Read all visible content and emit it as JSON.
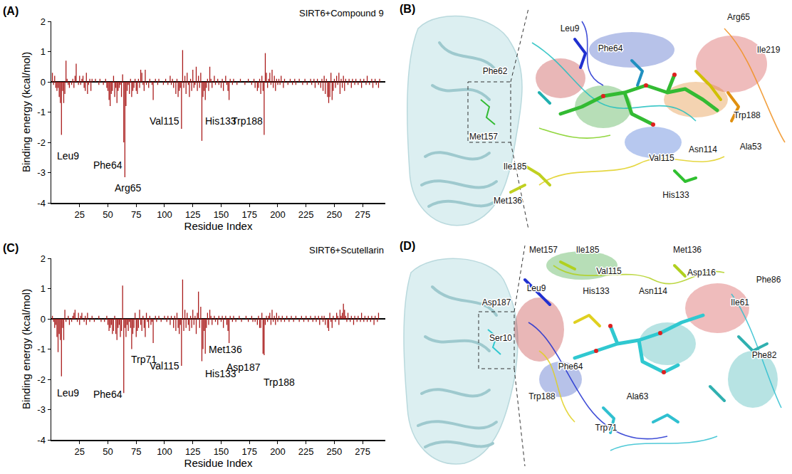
{
  "chart_data": [
    {
      "panel": "(A)",
      "type": "bar",
      "title": "SIRT6+Compound 9",
      "x_label": "Residue Index",
      "y_label": "Binding energy (kcal/mol)",
      "color": "#a81818",
      "grid": false,
      "xlim": [
        0,
        295
      ],
      "xticks": [
        25,
        50,
        75,
        100,
        125,
        150,
        175,
        200,
        225,
        250,
        275
      ],
      "ylim": [
        -4,
        2
      ],
      "yticks": [
        -4,
        -3,
        -2,
        -1,
        0,
        1,
        2
      ],
      "x": [
        1,
        2,
        3,
        4,
        5,
        6,
        7,
        8,
        9,
        10,
        11,
        12,
        13,
        14,
        15,
        16,
        17,
        18,
        19,
        20,
        21,
        22,
        23,
        24,
        25,
        26,
        27,
        28,
        29,
        30,
        31,
        32,
        33,
        34,
        35,
        36,
        37,
        38,
        39,
        40,
        41,
        42,
        43,
        44,
        45,
        46,
        47,
        48,
        49,
        50,
        51,
        52,
        53,
        54,
        55,
        56,
        57,
        58,
        59,
        60,
        61,
        62,
        63,
        64,
        65,
        66,
        67,
        68,
        69,
        70,
        71,
        72,
        73,
        74,
        75,
        76,
        77,
        78,
        79,
        80,
        81,
        82,
        83,
        84,
        85,
        86,
        87,
        88,
        89,
        90,
        91,
        92,
        93,
        94,
        95,
        96,
        97,
        98,
        99,
        100,
        101,
        102,
        103,
        104,
        105,
        106,
        107,
        108,
        109,
        110,
        111,
        112,
        113,
        114,
        115,
        116,
        117,
        118,
        119,
        120,
        121,
        122,
        123,
        124,
        125,
        126,
        127,
        128,
        129,
        130,
        131,
        132,
        133,
        134,
        135,
        136,
        137,
        138,
        139,
        140,
        141,
        142,
        143,
        144,
        145,
        146,
        147,
        148,
        149,
        150,
        151,
        152,
        153,
        154,
        155,
        156,
        157,
        158,
        159,
        160,
        161,
        162,
        163,
        164,
        165,
        166,
        167,
        168,
        169,
        170,
        171,
        172,
        173,
        174,
        175,
        176,
        177,
        178,
        179,
        180,
        181,
        182,
        183,
        184,
        185,
        186,
        187,
        188,
        189,
        190,
        191,
        192,
        193,
        194,
        195,
        196,
        197,
        198,
        199,
        200,
        201,
        202,
        203,
        204,
        205,
        206,
        207,
        208,
        209,
        210,
        211,
        212,
        213,
        214,
        215,
        216,
        217,
        218,
        219,
        220,
        221,
        222,
        223,
        224,
        225,
        226,
        227,
        228,
        229,
        230,
        231,
        232,
        233,
        234,
        235,
        236,
        237,
        238,
        239,
        240,
        241,
        242,
        243,
        244,
        245,
        246,
        247,
        248,
        249,
        250,
        251,
        252,
        253,
        254,
        255,
        256,
        257,
        258,
        259,
        260,
        261,
        262,
        263,
        264,
        265,
        266,
        267,
        268,
        269,
        270,
        271,
        272,
        273,
        274,
        275,
        276,
        277,
        278,
        279,
        280,
        281,
        282,
        283,
        284,
        285,
        286,
        287,
        288,
        289,
        290
      ],
      "values": [
        0.3,
        -0.1,
        0.2,
        -0.2,
        -0.3,
        -0.2,
        -0.5,
        -0.7,
        -1.75,
        -0.3,
        -0.7,
        -0.4,
        0.7,
        0.1,
        -0.1,
        -0.2,
        0.0,
        -0.1,
        0.1,
        -0.2,
        0.2,
        0.6,
        0.0,
        -0.1,
        0.2,
        -0.1,
        0.1,
        0.2,
        -0.2,
        -0.3,
        0.3,
        -0.4,
        -0.1,
        0.1,
        -0.3,
        0.1,
        0.0,
        0.0,
        0.1,
        0.0,
        0.0,
        -0.1,
        0.1,
        0.0,
        0.0,
        -0.1,
        0.0,
        0.1,
        -0.2,
        -0.3,
        -0.6,
        -0.8,
        -0.4,
        -0.3,
        0.2,
        -0.5,
        -0.2,
        -0.7,
        -0.3,
        -0.2,
        -0.1,
        -0.5,
        0.25,
        -2.0,
        -3.15,
        -0.8,
        -0.3,
        -0.1,
        -0.4,
        0.1,
        -0.5,
        -0.3,
        -0.2,
        0.1,
        -0.3,
        -0.4,
        0.1,
        -0.2,
        0.4,
        0.3,
        -0.1,
        -0.3,
        0.4,
        -0.1,
        0.0,
        -0.2,
        0.1,
        0.0,
        -0.1,
        -0.6,
        0.0,
        0.1,
        0.0,
        -0.1,
        0.1,
        0.0,
        0.0,
        0.0,
        -0.1,
        0.0,
        0.1,
        0.0,
        -0.1,
        0.0,
        0.2,
        -0.1,
        0.1,
        -0.2,
        0.0,
        -0.4,
        0.1,
        -0.5,
        -0.3,
        -0.2,
        -1.55,
        1.05,
        -0.2,
        0.2,
        -0.4,
        0.3,
        -0.1,
        -0.5,
        0.1,
        -0.3,
        0.4,
        -0.2,
        -0.1,
        0.5,
        -0.3,
        0.2,
        -0.2,
        0.3,
        -1.95,
        -0.5,
        -0.3,
        -0.6,
        -0.2,
        0.1,
        -0.3,
        0.5,
        0.1,
        -0.2,
        0.0,
        0.2,
        -0.1,
        0.0,
        0.1,
        -0.1,
        0.0,
        -0.2,
        0.1,
        -0.3,
        0.0,
        0.2,
        -0.1,
        -0.3,
        -0.6,
        0.1,
        0.0,
        -0.1,
        0.1,
        0.0,
        0.0,
        -0.1,
        0.0,
        0.0,
        0.1,
        0.0,
        0.0,
        0.0,
        -0.1,
        0.0,
        0.0,
        0.1,
        0.0,
        0.0,
        -0.1,
        0.0,
        0.1,
        -0.2,
        0.0,
        -0.3,
        -0.2,
        0.1,
        -0.4,
        0.2,
        -0.3,
        -1.75,
        0.95,
        0.3,
        -0.2,
        0.1,
        0.3,
        -0.1,
        0.4,
        -0.2,
        0.2,
        -0.3,
        0.1,
        -0.1,
        0.1,
        -0.1,
        0.2,
        0.0,
        -0.2,
        0.1,
        0.0,
        0.0,
        -0.1,
        0.0,
        0.1,
        0.0,
        -0.1,
        0.0,
        0.1,
        -0.1,
        0.0,
        0.0,
        0.1,
        0.0,
        0.0,
        -0.1,
        0.0,
        0.1,
        0.0,
        -0.1,
        0.0,
        0.0,
        0.1,
        -0.1,
        0.0,
        0.1,
        -0.2,
        0.0,
        0.1,
        -0.1,
        0.0,
        -0.2,
        0.1,
        -0.3,
        0.2,
        -0.4,
        0.1,
        -0.5,
        -0.7,
        -0.5,
        0.3,
        -0.6,
        -0.3,
        0.1,
        -0.2,
        0.2,
        -0.1,
        0.3,
        -0.4,
        0.1,
        -0.2,
        0.2,
        -0.3,
        0.1,
        0.0,
        -0.1,
        0.1,
        0.0,
        -0.2,
        0.1,
        0.0,
        -0.1,
        0.1,
        0.0,
        -0.1,
        0.0,
        0.1,
        -0.2,
        0.0,
        0.1,
        0.0,
        -0.1,
        0.2,
        0.0,
        -0.1,
        0.0,
        0.1,
        -0.2,
        0.0,
        0.1,
        -0.1,
        0.0,
        -0.2,
        0.1
      ],
      "annotations": [
        {
          "text": "Leu9",
          "x": 15,
          "y": -2.45
        },
        {
          "text": "Phe64",
          "x": 50,
          "y": -2.75
        },
        {
          "text": "Arg65",
          "x": 68,
          "y": -3.5
        },
        {
          "text": "Val115",
          "x": 100,
          "y": -1.3
        },
        {
          "text": "His133",
          "x": 150,
          "y": -1.3
        },
        {
          "text": "Trp188",
          "x": 173,
          "y": -1.3
        }
      ]
    },
    {
      "panel": "(C)",
      "type": "bar",
      "title": "SIRT6+Scutellarin",
      "x_label": "Residue Index",
      "y_label": "Binding energy (kcal/mol)",
      "color": "#a81818",
      "grid": false,
      "xlim": [
        0,
        295
      ],
      "xticks": [
        25,
        50,
        75,
        100,
        125,
        150,
        175,
        200,
        225,
        250,
        275
      ],
      "ylim": [
        -4,
        2
      ],
      "yticks": [
        -4,
        -3,
        -2,
        -1,
        0,
        1,
        2
      ],
      "x": [
        1,
        2,
        3,
        4,
        5,
        6,
        7,
        8,
        9,
        10,
        11,
        12,
        13,
        14,
        15,
        16,
        17,
        18,
        19,
        20,
        21,
        22,
        23,
        24,
        25,
        26,
        27,
        28,
        29,
        30,
        31,
        32,
        33,
        34,
        35,
        36,
        37,
        38,
        39,
        40,
        41,
        42,
        43,
        44,
        45,
        46,
        47,
        48,
        49,
        50,
        51,
        52,
        53,
        54,
        55,
        56,
        57,
        58,
        59,
        60,
        61,
        62,
        63,
        64,
        65,
        66,
        67,
        68,
        69,
        70,
        71,
        72,
        73,
        74,
        75,
        76,
        77,
        78,
        79,
        80,
        81,
        82,
        83,
        84,
        85,
        86,
        87,
        88,
        89,
        90,
        91,
        92,
        93,
        94,
        95,
        96,
        97,
        98,
        99,
        100,
        101,
        102,
        103,
        104,
        105,
        106,
        107,
        108,
        109,
        110,
        111,
        112,
        113,
        114,
        115,
        116,
        117,
        118,
        119,
        120,
        121,
        122,
        123,
        124,
        125,
        126,
        127,
        128,
        129,
        130,
        131,
        132,
        133,
        134,
        135,
        136,
        137,
        138,
        139,
        140,
        141,
        142,
        143,
        144,
        145,
        146,
        147,
        148,
        149,
        150,
        151,
        152,
        153,
        154,
        155,
        156,
        157,
        158,
        159,
        160,
        161,
        162,
        163,
        164,
        165,
        166,
        167,
        168,
        169,
        170,
        171,
        172,
        173,
        174,
        175,
        176,
        177,
        178,
        179,
        180,
        181,
        182,
        183,
        184,
        185,
        186,
        187,
        188,
        189,
        190,
        191,
        192,
        193,
        194,
        195,
        196,
        197,
        198,
        199,
        200,
        201,
        202,
        203,
        204,
        205,
        206,
        207,
        208,
        209,
        210,
        211,
        212,
        213,
        214,
        215,
        216,
        217,
        218,
        219,
        220,
        221,
        222,
        223,
        224,
        225,
        226,
        227,
        228,
        229,
        230,
        231,
        232,
        233,
        234,
        235,
        236,
        237,
        238,
        239,
        240,
        241,
        242,
        243,
        244,
        245,
        246,
        247,
        248,
        249,
        250,
        251,
        252,
        253,
        254,
        255,
        256,
        257,
        258,
        259,
        260,
        261,
        262,
        263,
        264,
        265,
        266,
        267,
        268,
        269,
        270,
        271,
        272,
        273,
        274,
        275,
        276,
        277,
        278,
        279,
        280,
        281,
        282,
        283,
        284,
        285,
        286,
        287,
        288,
        289,
        290
      ],
      "values": [
        0.1,
        -0.1,
        -0.3,
        -0.2,
        -0.6,
        -1.1,
        -0.5,
        -0.7,
        -1.9,
        -0.3,
        -0.7,
        0.3,
        -0.1,
        0.0,
        0.1,
        -0.2,
        0.0,
        -0.1,
        0.1,
        0.2,
        0.3,
        0.0,
        -0.1,
        0.2,
        -0.2,
        0.1,
        0.2,
        0.0,
        -0.1,
        0.1,
        -0.2,
        0.2,
        0.0,
        -0.1,
        0.0,
        0.1,
        0.0,
        -0.1,
        0.0,
        0.0,
        0.0,
        0.1,
        0.0,
        -0.1,
        0.0,
        0.0,
        -0.1,
        0.0,
        0.1,
        -0.2,
        -0.4,
        -0.3,
        -0.2,
        -0.5,
        -0.4,
        0.1,
        -0.5,
        -0.7,
        -0.3,
        -0.2,
        -0.6,
        -0.4,
        1.1,
        -2.45,
        -0.3,
        -0.6,
        -0.2,
        -0.4,
        -0.1,
        -0.3,
        -1.0,
        -0.5,
        -0.3,
        0.2,
        -0.6,
        -0.4,
        -0.3,
        0.3,
        -0.2,
        -0.4,
        0.1,
        -0.3,
        -0.6,
        0.2,
        -0.1,
        -0.3,
        0.1,
        -0.2,
        -0.1,
        -0.8,
        0.0,
        0.1,
        -0.1,
        0.0,
        0.1,
        0.0,
        -0.1,
        0.0,
        0.0,
        0.1,
        0.0,
        -0.1,
        0.1,
        0.0,
        -0.2,
        0.1,
        0.0,
        -0.3,
        0.1,
        -0.4,
        0.2,
        -0.3,
        -0.5,
        -0.2,
        -1.55,
        1.3,
        -0.4,
        0.3,
        -0.3,
        0.2,
        -0.2,
        -0.4,
        0.1,
        -0.3,
        0.3,
        -0.2,
        0.1,
        -0.5,
        0.2,
        0.9,
        -0.3,
        0.4,
        -1.4,
        -1.0,
        -0.4,
        -1.15,
        -0.3,
        0.2,
        -0.2,
        0.3,
        0.1,
        -0.2,
        0.0,
        0.1,
        -0.1,
        0.0,
        -0.2,
        0.1,
        0.0,
        -0.1,
        0.1,
        -0.3,
        0.0,
        0.1,
        -0.2,
        -0.4,
        -0.8,
        0.1,
        0.0,
        -0.1,
        0.1,
        0.0,
        -0.1,
        0.0,
        0.0,
        0.1,
        0.0,
        -0.1,
        0.0,
        0.0,
        0.0,
        0.1,
        0.0,
        -0.1,
        0.0,
        0.0,
        0.1,
        -0.1,
        0.0,
        -0.1,
        0.0,
        -0.2,
        0.1,
        -0.3,
        -0.3,
        0.2,
        -1.15,
        -1.2,
        -0.2,
        0.1,
        -0.1,
        0.1,
        0.2,
        -0.2,
        0.3,
        -0.1,
        0.1,
        -0.2,
        0.2,
        -0.1,
        0.1,
        0.0,
        -0.1,
        0.1,
        0.0,
        -0.1,
        0.0,
        0.1,
        0.0,
        -0.1,
        0.0,
        0.1,
        0.0,
        -0.1,
        0.0,
        0.1,
        0.0,
        0.0,
        -0.1,
        0.0,
        0.1,
        0.0,
        -0.1,
        0.0,
        0.1,
        0.0,
        -0.1,
        0.0,
        0.1,
        0.0,
        -0.1,
        0.0,
        0.1,
        -0.1,
        0.0,
        0.1,
        -0.2,
        0.0,
        0.1,
        -0.1,
        0.1,
        -0.2,
        0.0,
        -0.3,
        -0.4,
        0.2,
        -0.1,
        -0.3,
        0.1,
        0.0,
        -0.1,
        0.2,
        0.1,
        -0.2,
        0.3,
        0.1,
        0.2,
        0.5,
        0.3,
        0.1,
        -0.1,
        0.2,
        0.0,
        -0.1,
        0.1,
        0.0,
        -0.2,
        0.1,
        0.0,
        -0.1,
        0.1,
        0.0,
        -0.1,
        0.2,
        0.0,
        -0.1,
        0.1,
        0.0,
        -0.1,
        0.1,
        0.0,
        -0.1,
        0.1,
        0.0,
        -0.2,
        0.1,
        0.0,
        -0.1,
        0.2,
        0.0
      ],
      "annotations": [
        {
          "text": "Leu9",
          "x": 15,
          "y": -2.45
        },
        {
          "text": "Phe64",
          "x": 50,
          "y": -2.5
        },
        {
          "text": "Trp71",
          "x": 82,
          "y": -1.35
        },
        {
          "text": "Val115",
          "x": 100,
          "y": -1.55
        },
        {
          "text": "His133",
          "x": 150,
          "y": -1.8
        },
        {
          "text": "Met136",
          "x": 154,
          "y": -1.0
        },
        {
          "text": "Asp187",
          "x": 170,
          "y": -1.6
        },
        {
          "text": "Trp188",
          "x": 201,
          "y": -2.1
        }
      ]
    }
  ],
  "structure_panels": [
    {
      "panel": "(B)",
      "labels": [
        "Leu9",
        "Arg65",
        "Phe64",
        "Phe62",
        "Ile219",
        "Trp188",
        "Ala53",
        "Met157",
        "Asn114",
        "Val115",
        "Ile185",
        "Met136",
        "His133"
      ]
    },
    {
      "panel": "(D)",
      "labels": [
        "Met157",
        "Ile185",
        "Met136",
        "Val115",
        "Asp116",
        "Phe86",
        "Leu9",
        "His133",
        "Asn114",
        "Ile61",
        "Asp187",
        "Ser10",
        "Phe64",
        "Phe82",
        "Trp188",
        "Ala63",
        "Trp71"
      ]
    }
  ]
}
